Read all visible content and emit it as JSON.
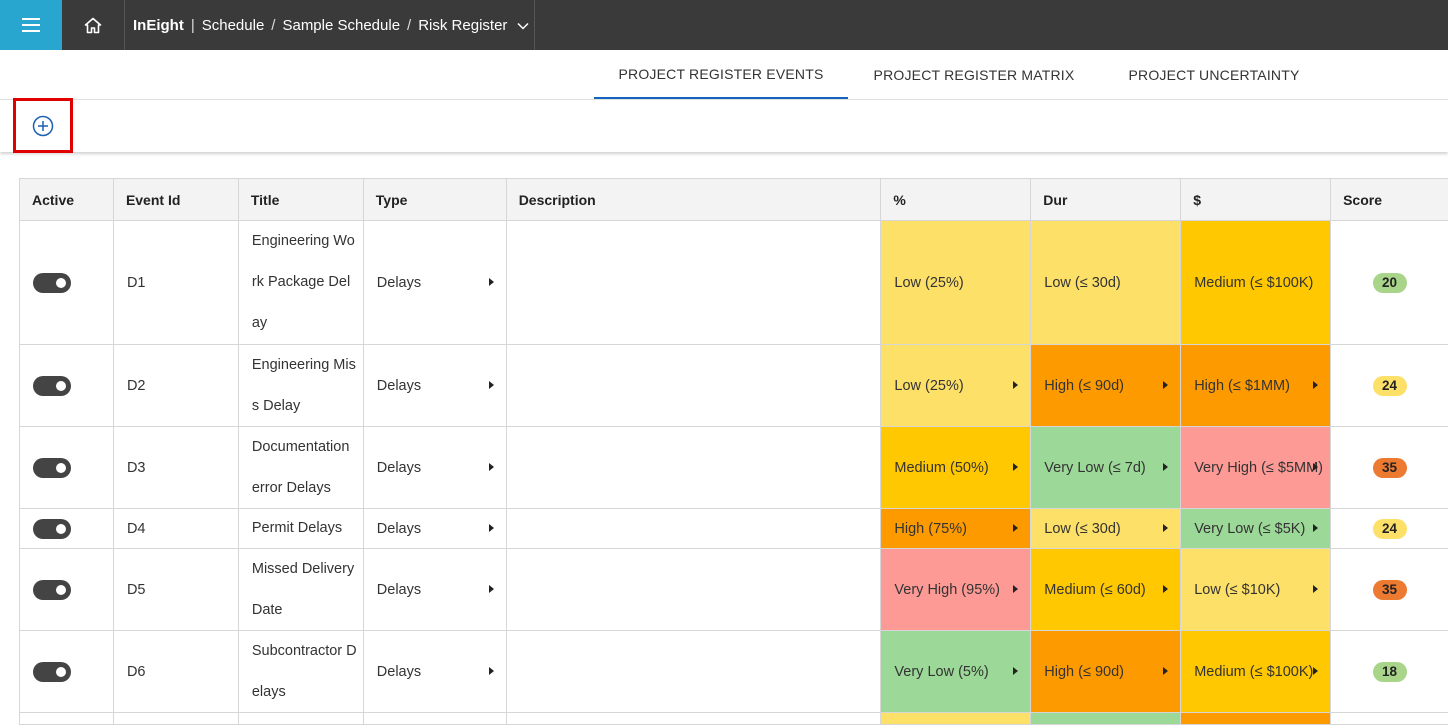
{
  "header": {
    "app": "InEight",
    "crumbs": [
      "Schedule",
      "Sample Schedule",
      "Risk Register"
    ],
    "sep1": "|",
    "sep": "/"
  },
  "tabs": [
    {
      "label": "PROJECT REGISTER EVENTS",
      "active": true
    },
    {
      "label": "PROJECT REGISTER MATRIX",
      "active": false
    },
    {
      "label": "PROJECT UNCERTAINTY",
      "active": false
    }
  ],
  "table": {
    "columns": [
      "Active",
      "Event Id",
      "Title",
      "Type",
      "Description",
      "%",
      "Dur",
      "$",
      "Score"
    ],
    "rows": [
      {
        "id": "D1",
        "title": "Engineering Work Package Delay",
        "type": "Delays",
        "description": "",
        "pct": "Low (25%)",
        "dur": "Low (≤ 30d)",
        "cost": "Medium (≤ $100K)",
        "score": "20",
        "pct_arrow": false,
        "dur_arrow": false,
        "cost_arrow": false,
        "pct_color": "#fde068",
        "dur_color": "#fde068",
        "cost_color": "#ffc800",
        "score_color": "#a8d58a",
        "lines": 3
      },
      {
        "id": "D2",
        "title": "Engineering Miss Delay",
        "type": "Delays",
        "description": "",
        "pct": "Low (25%)",
        "dur": "High (≤ 90d)",
        "cost": "High (≤ $1MM)",
        "score": "24",
        "pct_arrow": true,
        "dur_arrow": true,
        "cost_arrow": true,
        "pct_color": "#fde068",
        "dur_color": "#fd9a00",
        "cost_color": "#fd9a00",
        "score_color": "#fde068",
        "lines": 2
      },
      {
        "id": "D3",
        "title": "Documentation error Delays",
        "type": "Delays",
        "description": "",
        "pct": "Medium (50%)",
        "dur": "Very Low (≤ 7d)",
        "cost": "Very High (≤ $5MM)",
        "score": "35",
        "pct_arrow": true,
        "dur_arrow": true,
        "cost_arrow": true,
        "pct_color": "#ffc800",
        "dur_color": "#9cd897",
        "cost_color": "#fd9a95",
        "score_color": "#ec7a30",
        "lines": 2
      },
      {
        "id": "D4",
        "title": "Permit Delays",
        "type": "Delays",
        "description": "",
        "pct": "High (75%)",
        "dur": "Low (≤ 30d)",
        "cost": "Very Low (≤ $5K)",
        "score": "24",
        "pct_arrow": true,
        "dur_arrow": true,
        "cost_arrow": true,
        "pct_color": "#fd9a00",
        "dur_color": "#fde068",
        "cost_color": "#9cd897",
        "score_color": "#fde068",
        "lines": 1
      },
      {
        "id": "D5",
        "title": "Missed Delivery Date",
        "type": "Delays",
        "description": "",
        "pct": "Very High (95%)",
        "dur": "Medium (≤ 60d)",
        "cost": "Low (≤ $10K)",
        "score": "35",
        "pct_arrow": true,
        "dur_arrow": true,
        "cost_arrow": true,
        "pct_color": "#fd9a95",
        "dur_color": "#ffc800",
        "cost_color": "#fde068",
        "score_color": "#ec7a30",
        "lines": 2
      },
      {
        "id": "D6",
        "title": "Subcontractor Delays",
        "type": "Delays",
        "description": "",
        "pct": "Very Low (5%)",
        "dur": "High (≤ 90d)",
        "cost": "Medium (≤ $100K)",
        "score": "18",
        "pct_arrow": true,
        "dur_arrow": true,
        "cost_arrow": true,
        "pct_color": "#9cd897",
        "dur_color": "#fd9a00",
        "cost_color": "#ffc800",
        "score_color": "#a8d58a",
        "lines": 2
      }
    ]
  },
  "icons": {
    "menu": "menu-icon",
    "home": "home-icon",
    "chevron": "chevron-down-icon",
    "add": "add-circle-icon"
  }
}
